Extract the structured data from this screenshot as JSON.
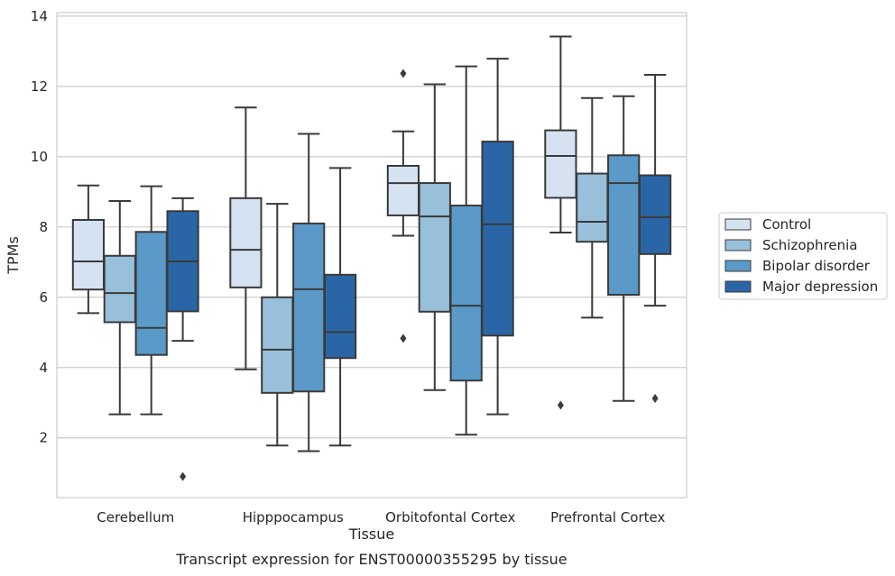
{
  "chart_data": {
    "type": "box",
    "title": "",
    "caption": "Transcript expression for ENST00000355295 by tissue",
    "xlabel": "Tissue",
    "ylabel": "TPMs",
    "ylim": [
      0.3,
      14.1
    ],
    "yticks": [
      2,
      4,
      6,
      8,
      10,
      12,
      14
    ],
    "grid": "horizontal",
    "legend_position": "right",
    "categories": [
      "Cerebellum",
      "Hipppocampus",
      "Orbitofontal Cortex",
      "Prefrontal Cortex"
    ],
    "series": [
      {
        "name": "Control",
        "color": "#d5e2f2",
        "boxes": [
          {
            "whisker_low": 5.55,
            "q1": 6.22,
            "median": 7.02,
            "q3": 8.2,
            "whisker_high": 9.18,
            "outliers": []
          },
          {
            "whisker_low": 3.95,
            "q1": 6.28,
            "median": 7.35,
            "q3": 8.82,
            "whisker_high": 11.4,
            "outliers": []
          },
          {
            "whisker_low": 7.75,
            "q1": 8.33,
            "median": 9.25,
            "q3": 9.74,
            "whisker_high": 10.72,
            "outliers": [
              12.37,
              4.83
            ]
          },
          {
            "whisker_low": 7.84,
            "q1": 8.83,
            "median": 10.02,
            "q3": 10.75,
            "whisker_high": 13.42,
            "outliers": [
              2.93
            ]
          }
        ]
      },
      {
        "name": "Schizophrenia",
        "color": "#99c0da",
        "boxes": [
          {
            "whisker_low": 2.67,
            "q1": 5.29,
            "median": 6.12,
            "q3": 7.18,
            "whisker_high": 8.74,
            "outliers": []
          },
          {
            "whisker_low": 1.78,
            "q1": 3.28,
            "median": 4.51,
            "q3": 6.0,
            "whisker_high": 8.66,
            "outliers": []
          },
          {
            "whisker_low": 3.36,
            "q1": 5.59,
            "median": 8.3,
            "q3": 9.25,
            "whisker_high": 12.06,
            "outliers": []
          },
          {
            "whisker_low": 5.42,
            "q1": 7.58,
            "median": 8.15,
            "q3": 9.52,
            "whisker_high": 11.67,
            "outliers": []
          }
        ]
      },
      {
        "name": "Bipolar disorder",
        "color": "#5b9ac8",
        "boxes": [
          {
            "whisker_low": 2.67,
            "q1": 4.36,
            "median": 5.13,
            "q3": 7.86,
            "whisker_high": 9.16,
            "outliers": []
          },
          {
            "whisker_low": 1.62,
            "q1": 3.32,
            "median": 6.23,
            "q3": 8.1,
            "whisker_high": 10.65,
            "outliers": []
          },
          {
            "whisker_low": 2.09,
            "q1": 3.63,
            "median": 5.76,
            "q3": 8.61,
            "whisker_high": 12.57,
            "outliers": []
          },
          {
            "whisker_low": 3.05,
            "q1": 6.07,
            "median": 9.25,
            "q3": 10.04,
            "whisker_high": 11.72,
            "outliers": []
          }
        ]
      },
      {
        "name": "Major depression",
        "color": "#2a66a6",
        "boxes": [
          {
            "whisker_low": 4.76,
            "q1": 5.6,
            "median": 7.02,
            "q3": 8.45,
            "whisker_high": 8.82,
            "outliers": [
              0.9
            ]
          },
          {
            "whisker_low": 1.78,
            "q1": 4.27,
            "median": 5.01,
            "q3": 6.64,
            "whisker_high": 9.68,
            "outliers": []
          },
          {
            "whisker_low": 2.67,
            "q1": 4.91,
            "median": 8.08,
            "q3": 10.43,
            "whisker_high": 12.79,
            "outliers": []
          },
          {
            "whisker_low": 5.76,
            "q1": 7.23,
            "median": 8.28,
            "q3": 9.47,
            "whisker_high": 12.33,
            "outliers": [
              3.12
            ]
          }
        ]
      }
    ]
  }
}
